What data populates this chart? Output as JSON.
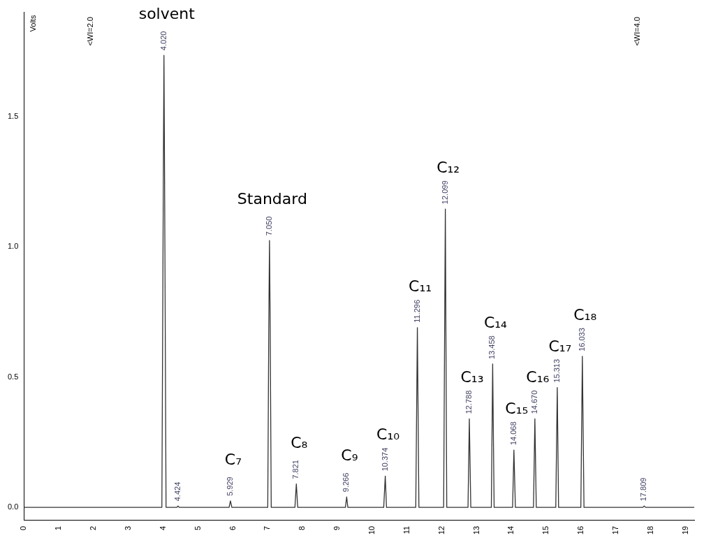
{
  "chart_data": {
    "type": "line",
    "ylabel": "Volts",
    "x": [
      0,
      2.5,
      3.96,
      4.0,
      4.02,
      4.04,
      4.08,
      4.39,
      4.424,
      4.46,
      5.89,
      5.929,
      5.97,
      7.0,
      7.03,
      7.05,
      7.07,
      7.1,
      7.78,
      7.821,
      7.86,
      9.23,
      9.266,
      9.3,
      10.33,
      10.374,
      10.41,
      11.25,
      11.296,
      11.34,
      12.05,
      12.099,
      12.14,
      12.75,
      12.788,
      12.83,
      13.42,
      13.458,
      13.5,
      14.03,
      14.068,
      14.11,
      14.63,
      14.67,
      14.71,
      15.27,
      15.313,
      15.35,
      15.99,
      16.033,
      16.08,
      17.77,
      17.809,
      17.85,
      19.25
    ],
    "values": [
      0,
      0,
      0,
      1.2,
      1.735,
      1.2,
      0,
      0,
      0.005,
      0,
      0,
      0.025,
      0,
      0,
      0.7,
      1.024,
      0.7,
      0,
      0,
      0.09,
      0,
      0,
      0.04,
      0,
      0,
      0.12,
      0,
      0,
      0.69,
      0,
      0,
      1.145,
      0,
      0,
      0.34,
      0,
      0,
      0.55,
      0,
      0,
      0.22,
      0,
      0,
      0.34,
      0,
      0,
      0.46,
      0,
      0,
      0.58,
      0,
      0,
      0.005,
      0,
      0
    ],
    "color": "#333333",
    "marker": "none",
    "grid": false,
    "legend": false,
    "xlim": [
      0,
      19.25
    ],
    "xticks": [
      0,
      1,
      2,
      3,
      4,
      5,
      6,
      7,
      8,
      9,
      10,
      11,
      12,
      13,
      14,
      15,
      16,
      17,
      18,
      19
    ],
    "ylim": [
      -0.05,
      1.9
    ],
    "yticks": [
      {
        "value": 0,
        "label": "0.0"
      },
      0.5,
      {
        "value": 1,
        "label": "1.0"
      },
      1.5
    ],
    "annotations": [
      "<WI=2.0",
      "<WI=4.0",
      {
        "text": "4.020",
        "x": 4.02,
        "y": 1.735
      },
      {
        "text": "solvent",
        "x": 4.02,
        "y": 1.735
      },
      {
        "text": "4.424",
        "x": 4.424,
        "y": 0.005
      },
      {
        "text": "5.929",
        "x": 5.929,
        "y": 0.025
      },
      {
        "text": "C₇",
        "x": 5.929,
        "y": 0.025
      },
      {
        "text": "7.050",
        "x": 7.05,
        "y": 1.024
      },
      {
        "text": "Standard",
        "x": 7.05,
        "y": 1.024
      },
      {
        "text": "7.821",
        "x": 7.821,
        "y": 0.09
      },
      {
        "text": "C₈",
        "x": 7.821,
        "y": 0.09
      },
      {
        "text": "9.266",
        "x": 9.266,
        "y": 0.04
      },
      {
        "text": "C₉",
        "x": 9.266,
        "y": 0.04
      },
      {
        "text": "10.374",
        "x": 10.374,
        "y": 0.12
      },
      {
        "text": "C₁₀",
        "x": 10.374,
        "y": 0.12
      },
      {
        "text": "11.296",
        "x": 11.296,
        "y": 0.69
      },
      {
        "text": "C₁₁",
        "x": 11.296,
        "y": 0.69
      },
      {
        "text": "12.099",
        "x": 12.099,
        "y": 1.145
      },
      {
        "text": "C₁₂",
        "x": 12.099,
        "y": 1.145
      },
      {
        "text": "12.788",
        "x": 12.788,
        "y": 0.34
      },
      {
        "text": "C₁₃",
        "x": 12.788,
        "y": 0.34
      },
      {
        "text": "13.458",
        "x": 13.458,
        "y": 0.55
      },
      {
        "text": "C₁₄",
        "x": 13.458,
        "y": 0.55
      },
      {
        "text": "14.068",
        "x": 14.068,
        "y": 0.22
      },
      {
        "text": "C₁₅",
        "x": 14.068,
        "y": 0.22
      },
      {
        "text": "14.670",
        "x": 14.67,
        "y": 0.34
      },
      {
        "text": "C₁₆",
        "x": 14.67,
        "y": 0.34
      },
      {
        "text": "15.313",
        "x": 15.313,
        "y": 0.46
      },
      {
        "text": "C₁₇",
        "x": 15.313,
        "y": 0.46
      },
      {
        "text": "16.033",
        "x": 16.033,
        "y": 0.58
      },
      {
        "text": "C₁₈",
        "x": 16.033,
        "y": 0.58
      },
      {
        "text": "17.809",
        "x": 17.809,
        "y": 0.005
      }
    ]
  }
}
